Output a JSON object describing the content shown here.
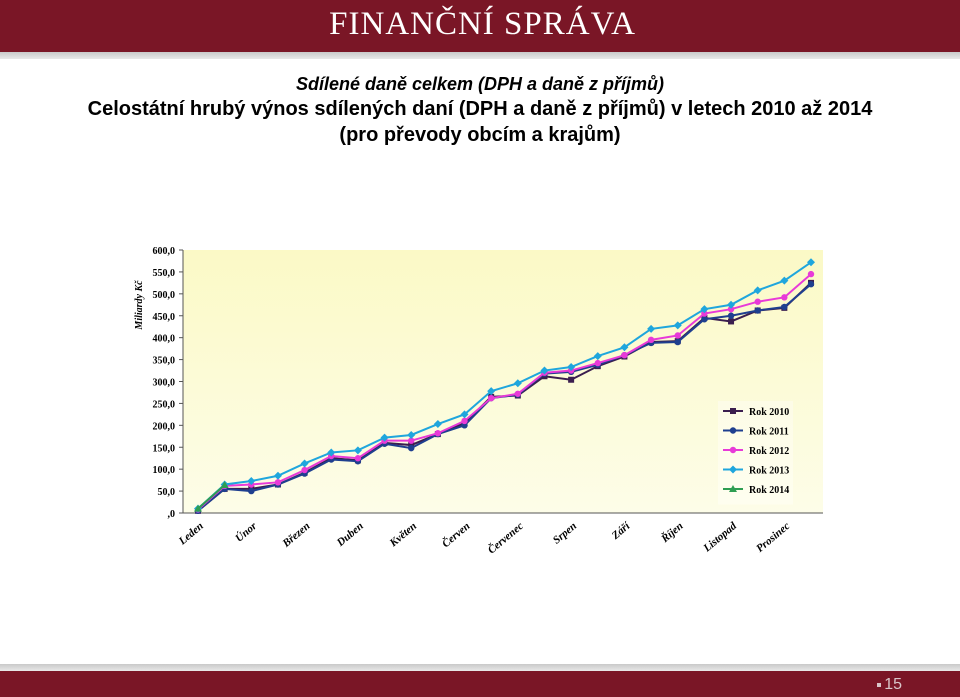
{
  "header": {
    "brand": "FINANČNÍ SPRÁVA"
  },
  "titles": {
    "line1": "Sdílené daně celkem (DPH a daně z příjmů)",
    "line2": "Celostátní hrubý výnos sdílených daní (DPH a daně z příjmů) v letech 2010 až 2014",
    "line3": "(pro převody obcím a krajům)"
  },
  "footer": {
    "page_number": "15"
  },
  "colors": {
    "brand": "#7a1626",
    "plot_bg_top": "#fbf9c6",
    "plot_bg_bottom": "#fdfde8"
  },
  "chart_data": {
    "type": "line",
    "title": "",
    "ylabel": "Miliardy Kč",
    "xlabel": "",
    "ylim": [
      0,
      600
    ],
    "yticks": [
      ",0",
      "50,0",
      "100,0",
      "150,0",
      "200,0",
      "250,0",
      "300,0",
      "350,0",
      "400,0",
      "450,0",
      "500,0",
      "550,0",
      "600,0"
    ],
    "month_labels": [
      "Leden",
      "Únor",
      "Březen",
      "Duben",
      "Květen",
      "Červen",
      "Červenec",
      "Srpen",
      "Září",
      "Říjen",
      "Listopad",
      "Prosinec"
    ],
    "x_points": 24,
    "legend_position": "lower-right",
    "grid": false,
    "series": [
      {
        "name": "Rok 2010",
        "color": "#3b1e4f",
        "marker": "square",
        "values": [
          5,
          55,
          55,
          65,
          92,
          125,
          120,
          160,
          155,
          180,
          205,
          265,
          268,
          312,
          304,
          335,
          357,
          390,
          392,
          445,
          437,
          462,
          468,
          525
        ]
      },
      {
        "name": "Rok 2011",
        "color": "#1f3f8f",
        "marker": "circle",
        "values": [
          5,
          55,
          50,
          65,
          90,
          122,
          118,
          158,
          148,
          180,
          200,
          262,
          270,
          318,
          322,
          338,
          360,
          388,
          390,
          442,
          450,
          462,
          470,
          522
        ]
      },
      {
        "name": "Rok 2012",
        "color": "#e83ad8",
        "marker": "circle",
        "values": [
          8,
          62,
          65,
          70,
          98,
          130,
          125,
          165,
          165,
          182,
          210,
          262,
          272,
          320,
          325,
          342,
          360,
          395,
          405,
          455,
          465,
          482,
          492,
          545
        ]
      },
      {
        "name": "Rok 2013",
        "color": "#1fa6dd",
        "marker": "diamond",
        "values": [
          10,
          65,
          73,
          85,
          113,
          138,
          143,
          172,
          178,
          203,
          225,
          278,
          296,
          325,
          333,
          358,
          378,
          420,
          428,
          465,
          475,
          508,
          530,
          572
        ]
      },
      {
        "name": "Rok 2014",
        "color": "#2e9e52",
        "marker": "triangle",
        "values": [
          10,
          64
        ]
      }
    ]
  }
}
